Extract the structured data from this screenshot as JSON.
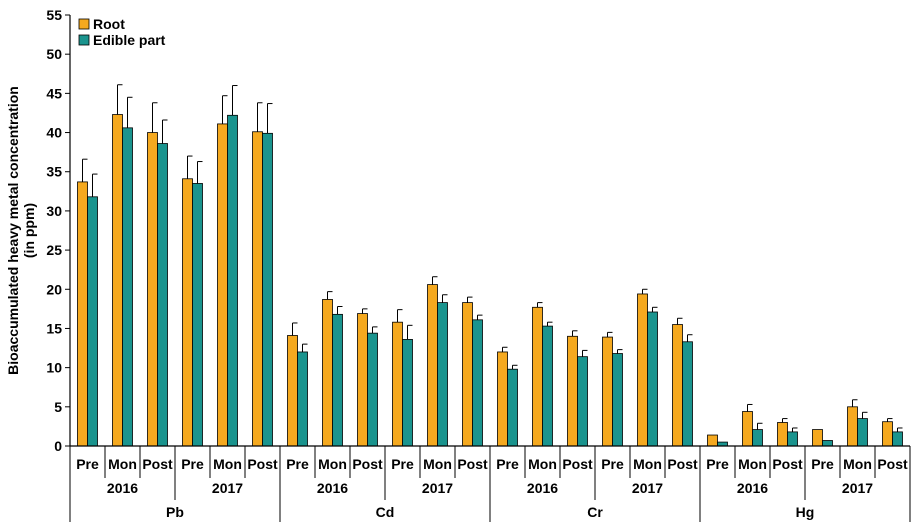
{
  "chart_data": {
    "type": "bar",
    "ylabel_lines": [
      "Bioaccumulated heavy metal concentration",
      "(in ppm)"
    ],
    "ylim": [
      0,
      55
    ],
    "yticks": [
      0,
      5,
      10,
      15,
      20,
      25,
      30,
      35,
      40,
      45,
      50,
      55
    ],
    "grid": false,
    "legend_position": "top-left",
    "metals": [
      "Pb",
      "Cd",
      "Cr",
      "Hg"
    ],
    "years": [
      "2016",
      "2017"
    ],
    "seasons": [
      "Pre",
      "Mon",
      "Post"
    ],
    "categories": [
      "Pb 2016 Pre",
      "Pb 2016 Mon",
      "Pb 2016 Post",
      "Pb 2017 Pre",
      "Pb 2017 Mon",
      "Pb 2017 Post",
      "Cd 2016 Pre",
      "Cd 2016 Mon",
      "Cd 2016 Post",
      "Cd 2017 Pre",
      "Cd 2017 Mon",
      "Cd 2017 Post",
      "Cr 2016 Pre",
      "Cr 2016 Mon",
      "Cr 2016 Post",
      "Cr 2017 Pre",
      "Cr 2017 Mon",
      "Cr 2017 Post",
      "Hg 2016 Pre",
      "Hg 2016 Mon",
      "Hg 2016 Post",
      "Hg 2017 Pre",
      "Hg 2017 Mon",
      "Hg 2017 Post"
    ],
    "series": [
      {
        "name": "Root",
        "color": "#f5a91f",
        "values": [
          33.7,
          42.3,
          40.0,
          34.1,
          41.1,
          40.1,
          14.1,
          18.7,
          16.9,
          15.8,
          20.6,
          18.3,
          12.0,
          17.7,
          14.0,
          13.9,
          19.4,
          15.5,
          1.4,
          4.4,
          3.0,
          2.1,
          5.0,
          3.1
        ],
        "errors": [
          2.9,
          3.8,
          3.8,
          2.9,
          3.6,
          3.7,
          1.6,
          1.0,
          0.6,
          1.6,
          1.0,
          0.7,
          0.6,
          0.6,
          0.7,
          0.6,
          0.6,
          0.8,
          0.0,
          0.9,
          0.5,
          0.0,
          0.9,
          0.4
        ]
      },
      {
        "name": "Edible part",
        "color": "#1a948e",
        "values": [
          31.8,
          40.6,
          38.6,
          33.5,
          42.2,
          39.9,
          12.0,
          16.8,
          14.4,
          13.6,
          18.3,
          16.1,
          9.8,
          15.3,
          11.4,
          11.8,
          17.1,
          13.3,
          0.5,
          2.1,
          1.8,
          0.7,
          3.5,
          1.8
        ],
        "errors": [
          2.9,
          3.9,
          3.0,
          2.8,
          3.8,
          3.8,
          1.0,
          1.0,
          0.8,
          1.8,
          1.0,
          0.6,
          0.5,
          0.5,
          0.8,
          0.5,
          0.6,
          0.9,
          0.0,
          0.8,
          0.5,
          0.0,
          0.8,
          0.5
        ]
      }
    ]
  }
}
